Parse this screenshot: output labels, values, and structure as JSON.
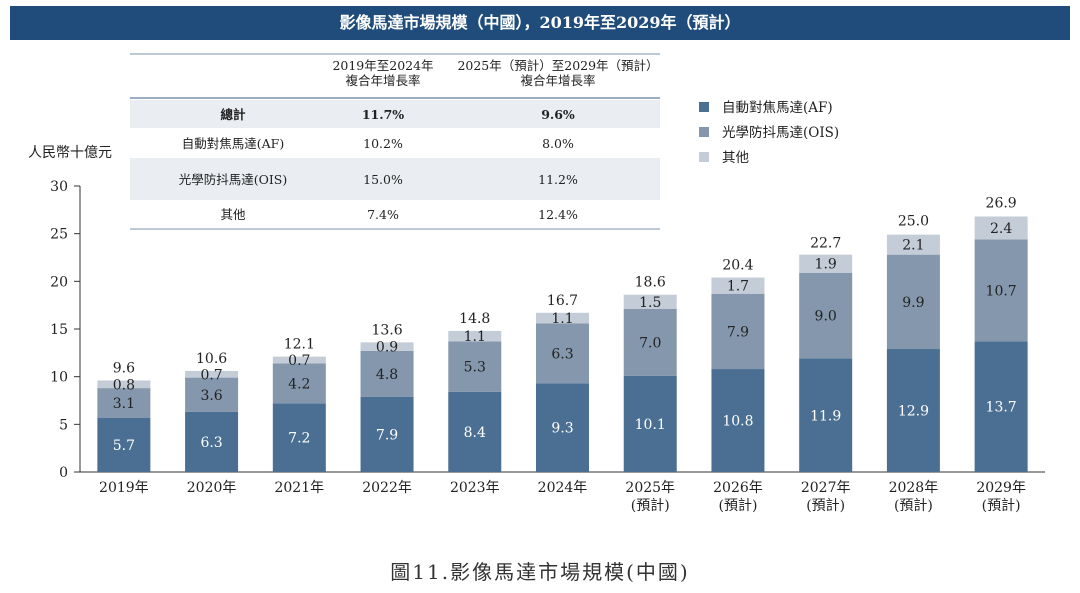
{
  "header": {
    "title": "影像馬達市場規模（中國），2019年至2029年（預計）"
  },
  "table": {
    "columns": [
      "2019年至2024年\n複合年增長率",
      "2025年（預計）至2029年（預計）\n複合年增長率"
    ],
    "rows": [
      {
        "label": "總計",
        "cagr_2019_2024": "11.7%",
        "cagr_2025_2029": "9.6%",
        "bold": true
      },
      {
        "label": "自動對焦馬達(AF)",
        "cagr_2019_2024": "10.2%",
        "cagr_2025_2029": "8.0%"
      },
      {
        "label": "光學防抖馬達(OIS)",
        "cagr_2019_2024": "15.0%",
        "cagr_2025_2029": "11.2%"
      },
      {
        "label": "其他",
        "cagr_2019_2024": "7.4%",
        "cagr_2025_2029": "12.4%"
      }
    ]
  },
  "chart_data": {
    "type": "bar",
    "stacked": true,
    "title": "影像馬達市場規模（中國），2019年至2029年（預計）",
    "ylabel": "人民幣十億元",
    "xlabel": "",
    "ylim": [
      0,
      30
    ],
    "yticks": [
      0,
      5,
      10,
      15,
      20,
      25,
      30
    ],
    "categories": [
      "2019年",
      "2020年",
      "2021年",
      "2022年",
      "2023年",
      "2024年",
      "2025年\n(預計)",
      "2026年\n(預計)",
      "2027年\n(預計)",
      "2028年\n(預計)",
      "2029年\n(預計)"
    ],
    "series": [
      {
        "name": "自動對焦馬達(AF)",
        "color": "#4a6f93",
        "values": [
          5.7,
          6.3,
          7.2,
          7.9,
          8.4,
          9.3,
          10.1,
          10.8,
          11.9,
          12.9,
          13.7
        ]
      },
      {
        "name": "光學防抖馬達(OIS)",
        "color": "#8497ad",
        "values": [
          3.1,
          3.6,
          4.2,
          4.8,
          5.3,
          6.3,
          7.0,
          7.9,
          9.0,
          9.9,
          10.7
        ]
      },
      {
        "name": "其他",
        "color": "#c3ccd7",
        "values": [
          0.8,
          0.7,
          0.7,
          0.9,
          1.1,
          1.1,
          1.5,
          1.7,
          1.9,
          2.1,
          2.4
        ]
      }
    ],
    "totals": [
      9.6,
      10.6,
      12.1,
      13.6,
      14.8,
      16.7,
      18.6,
      20.4,
      22.7,
      25.0,
      26.9
    ],
    "total_labels": [
      "9.6",
      "10.6",
      "12.1",
      "13.6",
      "14.8",
      "16.7",
      "18.6",
      "20.4",
      "22.7",
      "25.0",
      "26.9"
    ],
    "legend_position": "top-right"
  },
  "caption": "圖11.影像馬達市場規模(中國)"
}
